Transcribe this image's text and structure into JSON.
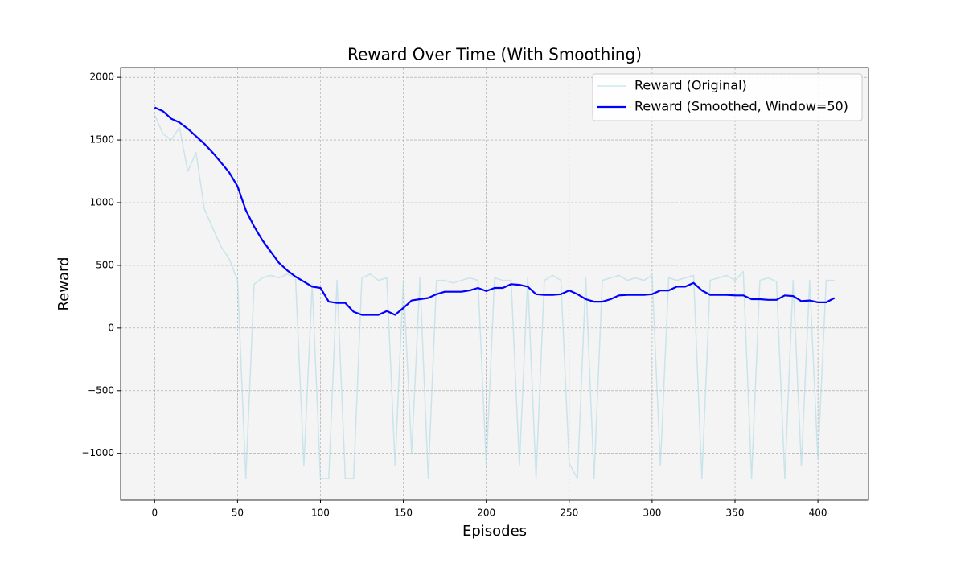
{
  "chart_data": {
    "type": "line",
    "title": "Reward Over Time (With Smoothing)",
    "xlabel": "Episodes",
    "ylabel": "Reward",
    "x": [
      0,
      5,
      10,
      15,
      20,
      25,
      30,
      35,
      40,
      45,
      50,
      55,
      60,
      65,
      70,
      75,
      80,
      85,
      90,
      95,
      100,
      105,
      110,
      115,
      120,
      125,
      130,
      135,
      140,
      145,
      150,
      155,
      160,
      165,
      170,
      175,
      180,
      185,
      190,
      195,
      200,
      205,
      210,
      215,
      220,
      225,
      230,
      235,
      240,
      245,
      250,
      255,
      260,
      265,
      270,
      275,
      280,
      285,
      290,
      295,
      300,
      305,
      310,
      315,
      320,
      325,
      330,
      335,
      340,
      345,
      350,
      355,
      360,
      365,
      370,
      375,
      380,
      385,
      390,
      395,
      400,
      405,
      410
    ],
    "series": [
      {
        "name": "Reward (Original)",
        "color": "#add8e6",
        "values": [
          1700,
          1550,
          1500,
          1600,
          1250,
          1400,
          950,
          800,
          650,
          550,
          380,
          -1200,
          350,
          400,
          420,
          400,
          430,
          400,
          -1100,
          350,
          -1200,
          -1200,
          380,
          -1200,
          -1200,
          400,
          430,
          380,
          400,
          -1100,
          380,
          -1000,
          400,
          -1200,
          380,
          380,
          360,
          380,
          400,
          380,
          -1100,
          400,
          380,
          380,
          -1100,
          400,
          -1200,
          380,
          420,
          380,
          -1080,
          -1200,
          400,
          -1200,
          380,
          400,
          420,
          380,
          400,
          380,
          420,
          -1100,
          400,
          380,
          400,
          420,
          -1200,
          380,
          400,
          420,
          380,
          450,
          -1200,
          380,
          400,
          370,
          -1200,
          380,
          -1100,
          380,
          -1050,
          380,
          380
        ]
      },
      {
        "name": "Reward (Smoothed, Window=50)",
        "color": "#0000ff",
        "values": [
          1760,
          1730,
          1670,
          1640,
          1590,
          1530,
          1470,
          1400,
          1320,
          1240,
          1130,
          940,
          810,
          700,
          610,
          520,
          460,
          410,
          370,
          330,
          320,
          210,
          200,
          200,
          130,
          105,
          105,
          105,
          135,
          105,
          160,
          220,
          230,
          240,
          270,
          290,
          290,
          290,
          300,
          320,
          295,
          320,
          320,
          350,
          345,
          330,
          270,
          265,
          265,
          270,
          300,
          270,
          230,
          210,
          210,
          230,
          260,
          265,
          265,
          265,
          270,
          300,
          300,
          330,
          330,
          360,
          300,
          265,
          265,
          265,
          260,
          260,
          230,
          230,
          225,
          225,
          260,
          255,
          215,
          220,
          205,
          205,
          240
        ]
      }
    ],
    "xlim": [
      -20.5,
      430.5
    ],
    "ylim": [
      -1374,
      2078
    ],
    "xticks": [
      0,
      50,
      100,
      150,
      200,
      250,
      300,
      350,
      400
    ],
    "yticks": [
      {
        "value": -1000,
        "label": "−1000"
      },
      {
        "value": -500,
        "label": "−500"
      },
      0,
      500,
      1000,
      1500,
      2000
    ],
    "grid": true,
    "legend": "upper right"
  }
}
